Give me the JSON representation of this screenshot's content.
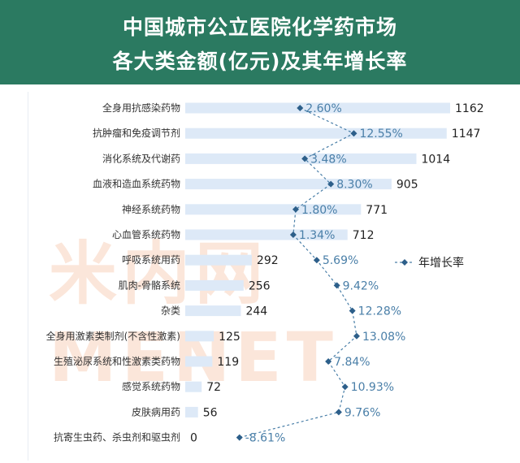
{
  "title_line1": "中国城市公立医院化学药市场",
  "title_line2": "各大类金额(亿元)及其年增长率",
  "watermark": "米内网 MENET",
  "colors": {
    "header": "#2b7a61",
    "bar": "#dde9f7",
    "line": "#4a7fa8",
    "marker": "#2d5f8a"
  },
  "chart_data": {
    "type": "bar",
    "orientation": "horizontal",
    "categories": [
      "全身用抗感染药物",
      "抗肿瘤和免疫调节剂",
      "消化系统及代谢药",
      "血液和造血系统药物",
      "神经系统药物",
      "心血管系统药物",
      "呼吸系统用药",
      "肌肉-骨骼系统",
      "杂类",
      "全身用激素类制剂(不含性激素)",
      "生殖泌尿系统和性激素类药物",
      "感觉系统药物",
      "皮肤病用药",
      "抗寄生虫药、杀虫剂和驱虫剂"
    ],
    "series": [
      {
        "values": [
          1162,
          1147,
          1014,
          905,
          771,
          712,
          292,
          256,
          244,
          125,
          119,
          72,
          56,
          0
        ]
      },
      {
        "name": "年增长率",
        "type": "line",
        "values": [
          2.6,
          12.55,
          3.48,
          8.3,
          1.8,
          1.34,
          5.69,
          9.42,
          12.28,
          13.08,
          7.84,
          10.93,
          9.76,
          -8.61
        ],
        "labels": [
          "2.60%",
          "12.55%",
          "3.48%",
          "8.30%",
          "1.80%",
          "1.34%",
          "5.69%",
          "9.42%",
          "12.28%",
          "13.08%",
          "7.84%",
          "10.93%",
          "9.76%",
          "-8.61%"
        ]
      }
    ],
    "value_labels": [
      "1162",
      "1147",
      "1014",
      "905",
      "771",
      "712",
      "292",
      "256",
      "244",
      "125",
      "119",
      "72",
      "56",
      "0"
    ],
    "legend": {
      "label": "年增长率",
      "position": "right"
    }
  }
}
